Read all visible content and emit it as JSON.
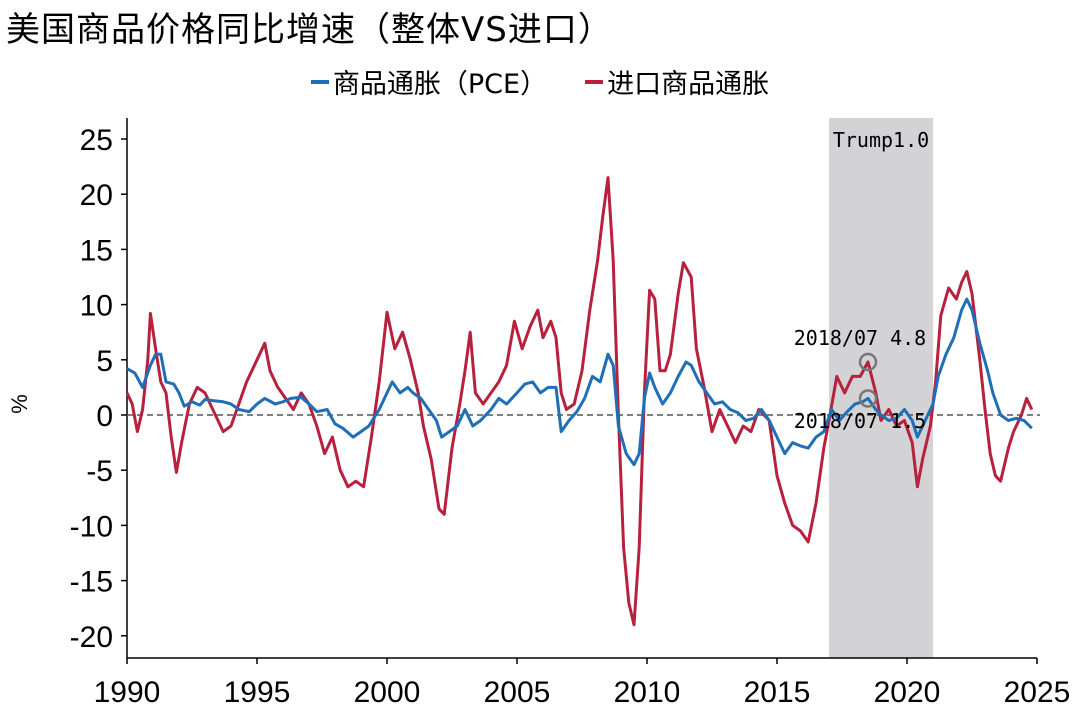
{
  "title": "美国商品价格同比增速（整体VS进口）",
  "chart_data": {
    "type": "line",
    "title": "美国商品价格同比增速（整体VS进口）",
    "ylabel": "%",
    "xlabel": "",
    "xlim": [
      1990,
      2025
    ],
    "ylim": [
      -22,
      27
    ],
    "x_ticks": [
      1990,
      1995,
      2000,
      2005,
      2010,
      2015,
      2020,
      2025
    ],
    "y_ticks": [
      25,
      20,
      15,
      10,
      5,
      0,
      -5,
      -10,
      -15,
      -20
    ],
    "legend_position": "top-center",
    "grid": false,
    "zero_line": "dashed",
    "shaded_region": {
      "label": "Trump1.0",
      "x_start": 2017.0,
      "x_end": 2021.0,
      "color": "#d3d3d5"
    },
    "annotations": [
      {
        "text": "2018/07  4.8",
        "x": 2018.5,
        "y": 4.8,
        "series": "进口商品通胀"
      },
      {
        "text": "2018/07  1.5",
        "x": 2018.5,
        "y": 1.5,
        "series": "商品通胀（PCE）"
      }
    ],
    "series": [
      {
        "name": "商品通胀（PCE）",
        "color": "#1f6fb8",
        "points": [
          [
            1990.0,
            4.2
          ],
          [
            1990.3,
            3.8
          ],
          [
            1990.6,
            2.5
          ],
          [
            1990.9,
            4.5
          ],
          [
            1991.1,
            5.5
          ],
          [
            1991.3,
            5.5
          ],
          [
            1991.5,
            3.0
          ],
          [
            1991.8,
            2.8
          ],
          [
            1992.0,
            2.0
          ],
          [
            1992.2,
            0.8
          ],
          [
            1992.5,
            1.2
          ],
          [
            1992.8,
            0.9
          ],
          [
            1993.0,
            1.4
          ],
          [
            1993.3,
            1.3
          ],
          [
            1993.7,
            1.2
          ],
          [
            1994.0,
            1.0
          ],
          [
            1994.3,
            0.5
          ],
          [
            1994.7,
            0.3
          ],
          [
            1995.0,
            1.0
          ],
          [
            1995.3,
            1.5
          ],
          [
            1995.7,
            1.0
          ],
          [
            1996.0,
            1.2
          ],
          [
            1996.3,
            1.5
          ],
          [
            1996.7,
            1.6
          ],
          [
            1997.0,
            1.0
          ],
          [
            1997.3,
            0.3
          ],
          [
            1997.7,
            0.5
          ],
          [
            1998.0,
            -0.8
          ],
          [
            1998.3,
            -1.2
          ],
          [
            1998.7,
            -2.0
          ],
          [
            1999.0,
            -1.5
          ],
          [
            1999.3,
            -1.0
          ],
          [
            1999.7,
            0.5
          ],
          [
            2000.0,
            2.0
          ],
          [
            2000.2,
            3.0
          ],
          [
            2000.5,
            2.0
          ],
          [
            2000.8,
            2.5
          ],
          [
            2001.0,
            2.0
          ],
          [
            2001.3,
            1.5
          ],
          [
            2001.6,
            0.5
          ],
          [
            2001.9,
            -0.5
          ],
          [
            2002.1,
            -2.0
          ],
          [
            2002.4,
            -1.5
          ],
          [
            2002.7,
            -1.0
          ],
          [
            2003.0,
            0.5
          ],
          [
            2003.3,
            -1.0
          ],
          [
            2003.6,
            -0.5
          ],
          [
            2004.0,
            0.5
          ],
          [
            2004.3,
            1.5
          ],
          [
            2004.6,
            1.0
          ],
          [
            2005.0,
            2.0
          ],
          [
            2005.3,
            2.8
          ],
          [
            2005.6,
            3.0
          ],
          [
            2005.9,
            2.0
          ],
          [
            2006.2,
            2.5
          ],
          [
            2006.5,
            2.5
          ],
          [
            2006.7,
            -1.5
          ],
          [
            2007.0,
            -0.5
          ],
          [
            2007.3,
            0.3
          ],
          [
            2007.6,
            1.5
          ],
          [
            2007.9,
            3.5
          ],
          [
            2008.2,
            3.0
          ],
          [
            2008.5,
            5.5
          ],
          [
            2008.7,
            4.5
          ],
          [
            2008.9,
            -1.0
          ],
          [
            2009.2,
            -3.5
          ],
          [
            2009.5,
            -4.5
          ],
          [
            2009.7,
            -3.5
          ],
          [
            2009.9,
            1.5
          ],
          [
            2010.1,
            3.8
          ],
          [
            2010.3,
            2.5
          ],
          [
            2010.6,
            1.0
          ],
          [
            2010.9,
            2.0
          ],
          [
            2011.2,
            3.5
          ],
          [
            2011.5,
            4.8
          ],
          [
            2011.7,
            4.5
          ],
          [
            2012.0,
            3.0
          ],
          [
            2012.3,
            2.0
          ],
          [
            2012.6,
            1.0
          ],
          [
            2012.9,
            1.2
          ],
          [
            2013.2,
            0.5
          ],
          [
            2013.5,
            0.2
          ],
          [
            2013.8,
            -0.5
          ],
          [
            2014.1,
            -0.3
          ],
          [
            2014.4,
            0.5
          ],
          [
            2014.7,
            -0.5
          ],
          [
            2015.0,
            -2.0
          ],
          [
            2015.3,
            -3.5
          ],
          [
            2015.6,
            -2.5
          ],
          [
            2015.9,
            -2.8
          ],
          [
            2016.2,
            -3.0
          ],
          [
            2016.5,
            -2.0
          ],
          [
            2016.8,
            -1.5
          ],
          [
            2017.1,
            0.5
          ],
          [
            2017.4,
            -0.5
          ],
          [
            2017.7,
            0.3
          ],
          [
            2018.0,
            1.0
          ],
          [
            2018.3,
            1.2
          ],
          [
            2018.5,
            1.5
          ],
          [
            2018.8,
            0.5
          ],
          [
            2019.0,
            0.0
          ],
          [
            2019.3,
            -0.5
          ],
          [
            2019.6,
            -0.3
          ],
          [
            2019.9,
            0.5
          ],
          [
            2020.2,
            -0.5
          ],
          [
            2020.4,
            -2.0
          ],
          [
            2020.7,
            -0.5
          ],
          [
            2021.0,
            1.0
          ],
          [
            2021.2,
            3.5
          ],
          [
            2021.5,
            5.5
          ],
          [
            2021.8,
            7.0
          ],
          [
            2022.1,
            9.5
          ],
          [
            2022.3,
            10.5
          ],
          [
            2022.5,
            9.5
          ],
          [
            2022.8,
            6.5
          ],
          [
            2023.1,
            4.0
          ],
          [
            2023.3,
            2.0
          ],
          [
            2023.6,
            0.0
          ],
          [
            2023.9,
            -0.5
          ],
          [
            2024.2,
            -0.3
          ],
          [
            2024.5,
            -0.5
          ],
          [
            2024.8,
            -1.2
          ]
        ]
      },
      {
        "name": "进口商品通胀",
        "color": "#b7213e",
        "points": [
          [
            1990.0,
            2.0
          ],
          [
            1990.2,
            1.0
          ],
          [
            1990.4,
            -1.5
          ],
          [
            1990.6,
            0.5
          ],
          [
            1990.8,
            5.0
          ],
          [
            1990.9,
            9.2
          ],
          [
            1991.1,
            6.0
          ],
          [
            1991.3,
            3.0
          ],
          [
            1991.5,
            2.0
          ],
          [
            1991.7,
            -2.0
          ],
          [
            1991.9,
            -5.2
          ],
          [
            1992.1,
            -2.5
          ],
          [
            1992.4,
            1.0
          ],
          [
            1992.7,
            2.5
          ],
          [
            1993.0,
            2.0
          ],
          [
            1993.3,
            0.5
          ],
          [
            1993.7,
            -1.5
          ],
          [
            1994.0,
            -1.0
          ],
          [
            1994.3,
            1.0
          ],
          [
            1994.6,
            3.0
          ],
          [
            1995.0,
            5.0
          ],
          [
            1995.3,
            6.5
          ],
          [
            1995.5,
            4.0
          ],
          [
            1995.8,
            2.5
          ],
          [
            1996.1,
            1.5
          ],
          [
            1996.4,
            0.5
          ],
          [
            1996.7,
            2.0
          ],
          [
            1997.0,
            1.0
          ],
          [
            1997.3,
            -1.0
          ],
          [
            1997.6,
            -3.5
          ],
          [
            1997.9,
            -2.0
          ],
          [
            1998.2,
            -5.0
          ],
          [
            1998.5,
            -6.5
          ],
          [
            1998.8,
            -6.0
          ],
          [
            1999.1,
            -6.5
          ],
          [
            1999.4,
            -2.0
          ],
          [
            1999.7,
            3.0
          ],
          [
            2000.0,
            9.3
          ],
          [
            2000.3,
            6.0
          ],
          [
            2000.6,
            7.5
          ],
          [
            2000.9,
            5.0
          ],
          [
            2001.2,
            2.0
          ],
          [
            2001.4,
            -1.0
          ],
          [
            2001.7,
            -4.0
          ],
          [
            2002.0,
            -8.5
          ],
          [
            2002.2,
            -9.0
          ],
          [
            2002.5,
            -3.0
          ],
          [
            2002.8,
            1.0
          ],
          [
            2003.0,
            4.0
          ],
          [
            2003.2,
            7.5
          ],
          [
            2003.4,
            2.0
          ],
          [
            2003.7,
            1.0
          ],
          [
            2004.0,
            2.0
          ],
          [
            2004.3,
            3.0
          ],
          [
            2004.6,
            4.5
          ],
          [
            2004.9,
            8.5
          ],
          [
            2005.2,
            6.0
          ],
          [
            2005.5,
            8.0
          ],
          [
            2005.8,
            9.5
          ],
          [
            2006.0,
            7.0
          ],
          [
            2006.3,
            8.5
          ],
          [
            2006.5,
            7.0
          ],
          [
            2006.7,
            2.0
          ],
          [
            2006.9,
            0.5
          ],
          [
            2007.2,
            1.0
          ],
          [
            2007.5,
            4.0
          ],
          [
            2007.8,
            9.5
          ],
          [
            2008.1,
            14.0
          ],
          [
            2008.3,
            18.0
          ],
          [
            2008.5,
            21.5
          ],
          [
            2008.7,
            14.0
          ],
          [
            2008.9,
            0.0
          ],
          [
            2009.1,
            -12.0
          ],
          [
            2009.3,
            -17.0
          ],
          [
            2009.5,
            -19.0
          ],
          [
            2009.7,
            -12.0
          ],
          [
            2009.9,
            2.0
          ],
          [
            2010.1,
            11.3
          ],
          [
            2010.3,
            10.5
          ],
          [
            2010.5,
            4.0
          ],
          [
            2010.7,
            4.0
          ],
          [
            2010.9,
            5.5
          ],
          [
            2011.2,
            11.0
          ],
          [
            2011.4,
            13.8
          ],
          [
            2011.7,
            12.5
          ],
          [
            2011.9,
            6.0
          ],
          [
            2012.2,
            2.5
          ],
          [
            2012.5,
            -1.5
          ],
          [
            2012.8,
            0.5
          ],
          [
            2013.1,
            -1.0
          ],
          [
            2013.4,
            -2.5
          ],
          [
            2013.7,
            -1.0
          ],
          [
            2014.0,
            -1.5
          ],
          [
            2014.3,
            0.5
          ],
          [
            2014.7,
            -0.5
          ],
          [
            2015.0,
            -5.5
          ],
          [
            2015.3,
            -8.0
          ],
          [
            2015.6,
            -10.0
          ],
          [
            2015.9,
            -10.5
          ],
          [
            2016.2,
            -11.5
          ],
          [
            2016.5,
            -8.0
          ],
          [
            2016.8,
            -3.0
          ],
          [
            2017.0,
            -0.5
          ],
          [
            2017.3,
            3.5
          ],
          [
            2017.6,
            2.0
          ],
          [
            2017.9,
            3.5
          ],
          [
            2018.2,
            3.5
          ],
          [
            2018.5,
            4.8
          ],
          [
            2018.8,
            2.0
          ],
          [
            2019.0,
            -0.5
          ],
          [
            2019.3,
            0.5
          ],
          [
            2019.6,
            -1.0
          ],
          [
            2019.9,
            -0.5
          ],
          [
            2020.2,
            -2.5
          ],
          [
            2020.4,
            -6.5
          ],
          [
            2020.6,
            -4.0
          ],
          [
            2020.9,
            -1.0
          ],
          [
            2021.1,
            3.0
          ],
          [
            2021.3,
            9.0
          ],
          [
            2021.6,
            11.5
          ],
          [
            2021.9,
            10.5
          ],
          [
            2022.1,
            12.0
          ],
          [
            2022.3,
            13.0
          ],
          [
            2022.5,
            11.0
          ],
          [
            2022.8,
            5.0
          ],
          [
            2023.0,
            0.5
          ],
          [
            2023.2,
            -3.5
          ],
          [
            2023.4,
            -5.5
          ],
          [
            2023.6,
            -6.0
          ],
          [
            2023.9,
            -3.0
          ],
          [
            2024.1,
            -1.5
          ],
          [
            2024.4,
            0.0
          ],
          [
            2024.6,
            1.5
          ],
          [
            2024.8,
            0.5
          ]
        ]
      }
    ]
  }
}
